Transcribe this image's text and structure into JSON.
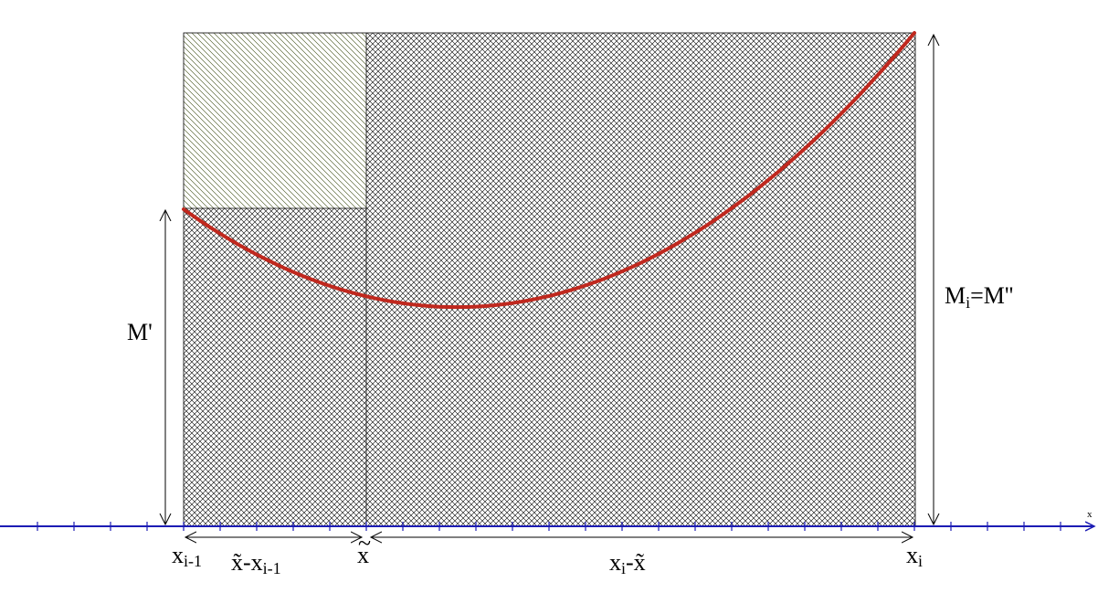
{
  "colors": {
    "curve": "#c0281e",
    "axis": "#1c1cb4",
    "hatch_cross": "#000000",
    "hatch_diag": "#3a4a10",
    "background": "#ffffff"
  },
  "labels": {
    "m_prime": "M'",
    "mi_main": "M",
    "mi_sub": "i",
    "mi_rest": "=M''",
    "axis_x": "x",
    "x_im1_main": "x",
    "x_im1_sub": "i-1",
    "x_tilde": "x",
    "x_tilde_mark": "~",
    "x_i_main": "x",
    "x_i_sub": "i",
    "left_width_main": "x̃-x",
    "left_width_sub": "i-1",
    "right_width_main": "x",
    "right_width_sub": "i",
    "right_width_rest": "-x̃"
  }
}
